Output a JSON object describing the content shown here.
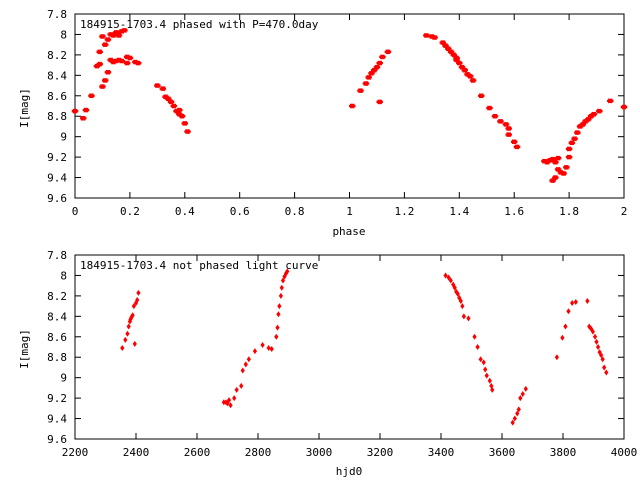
{
  "chart_data": [
    {
      "type": "scatter",
      "title": "184915-1703.4 phased with P=470.0day",
      "xlabel": "phase",
      "ylabel": "I[mag]",
      "xlim": [
        0,
        2
      ],
      "ylim": [
        9.6,
        7.8
      ],
      "y_inverted": true,
      "xticks": [
        "0",
        "0.2",
        "0.4",
        "0.6",
        "0.8",
        "1",
        "1.2",
        "1.4",
        "1.6",
        "1.8",
        "2"
      ],
      "yticks": [
        "7.8",
        "8",
        "8.2",
        "8.4",
        "8.6",
        "8.8",
        "9",
        "9.2",
        "9.4",
        "9.6"
      ],
      "grid": false,
      "legend": "none",
      "marker": "filled-square",
      "color": "#ff0000",
      "x": [
        0.0,
        0.03,
        0.04,
        0.06,
        0.08,
        0.09,
        0.09,
        0.1,
        0.1,
        0.11,
        0.11,
        0.12,
        0.12,
        0.13,
        0.13,
        0.14,
        0.14,
        0.15,
        0.15,
        0.16,
        0.16,
        0.17,
        0.17,
        0.18,
        0.19,
        0.19,
        0.2,
        0.22,
        0.23,
        0.3,
        0.32,
        0.33,
        0.34,
        0.35,
        0.36,
        0.37,
        0.38,
        0.38,
        0.39,
        0.4,
        0.41,
        1.01,
        1.04,
        1.06,
        1.07,
        1.08,
        1.09,
        1.1,
        1.11,
        1.11,
        1.12,
        1.14,
        1.28,
        1.3,
        1.31,
        1.34,
        1.35,
        1.36,
        1.37,
        1.38,
        1.39,
        1.39,
        1.4,
        1.41,
        1.42,
        1.43,
        1.44,
        1.45,
        1.48,
        1.51,
        1.53,
        1.55,
        1.57,
        1.58,
        1.58,
        1.6,
        1.61,
        1.71,
        1.72,
        1.73,
        1.74,
        1.74,
        1.75,
        1.75,
        1.76,
        1.76,
        1.77,
        1.78,
        1.79,
        1.8,
        1.8,
        1.81,
        1.82,
        1.83,
        1.84,
        1.85,
        1.86,
        1.87,
        1.88,
        1.89,
        1.91,
        1.95,
        2.0
      ],
      "y": [
        8.75,
        8.82,
        8.74,
        8.6,
        8.31,
        8.29,
        8.17,
        8.51,
        8.02,
        8.1,
        8.45,
        8.05,
        8.37,
        8.0,
        8.25,
        8.01,
        8.27,
        7.98,
        8.26,
        8.01,
        8.25,
        7.97,
        8.26,
        7.96,
        8.28,
        8.22,
        8.23,
        8.27,
        8.28,
        8.5,
        8.53,
        8.61,
        8.63,
        8.66,
        8.7,
        8.75,
        8.74,
        8.78,
        8.8,
        8.87,
        8.95,
        8.7,
        8.55,
        8.48,
        8.42,
        8.38,
        8.35,
        8.32,
        8.28,
        8.66,
        8.22,
        8.17,
        8.01,
        8.02,
        8.03,
        8.08,
        8.11,
        8.14,
        8.17,
        8.2,
        8.23,
        8.25,
        8.28,
        8.32,
        8.35,
        8.39,
        8.41,
        8.45,
        8.6,
        8.72,
        8.8,
        8.85,
        8.88,
        8.92,
        8.98,
        9.05,
        9.1,
        9.24,
        9.25,
        9.23,
        9.22,
        9.43,
        9.4,
        9.25,
        9.21,
        9.32,
        9.35,
        9.36,
        9.3,
        9.2,
        9.12,
        9.06,
        9.02,
        8.96,
        8.9,
        8.88,
        8.85,
        8.83,
        8.8,
        8.78,
        8.75,
        8.65,
        8.71
      ],
      "marker_size": 4.5
    },
    {
      "type": "scatter",
      "title": "184915-1703.4 not phased light curve",
      "xlabel": "hjd0",
      "ylabel": "I[mag]",
      "xlim": [
        2200,
        4000
      ],
      "ylim": [
        9.6,
        7.8
      ],
      "y_inverted": true,
      "xticks": [
        "2200",
        "2400",
        "2600",
        "2800",
        "3000",
        "3200",
        "3400",
        "3600",
        "3800",
        "4000"
      ],
      "yticks": [
        "7.8",
        "8",
        "8.2",
        "8.4",
        "8.6",
        "8.8",
        "9",
        "9.2",
        "9.4",
        "9.6"
      ],
      "grid": false,
      "legend": "none",
      "marker": "filled-diamond",
      "color": "#ff0000",
      "x": [
        2355,
        2365,
        2372,
        2376,
        2380,
        2382,
        2385,
        2389,
        2393,
        2396,
        2400,
        2404,
        2408,
        2688,
        2695,
        2700,
        2705,
        2710,
        2722,
        2730,
        2745,
        2750,
        2760,
        2770,
        2790,
        2815,
        2835,
        2845,
        2860,
        2864,
        2867,
        2870,
        2875,
        2878,
        2882,
        2887,
        2892,
        2896,
        3415,
        3425,
        3432,
        3440,
        3445,
        3450,
        3455,
        3460,
        3465,
        3470,
        3475,
        3490,
        3510,
        3520,
        3530,
        3540,
        3545,
        3550,
        3560,
        3565,
        3568,
        3635,
        3642,
        3650,
        3655,
        3660,
        3668,
        3678,
        3780,
        3798,
        3808,
        3818,
        3830,
        3842,
        3880,
        3886,
        3892,
        3898,
        3905,
        3910,
        3915,
        3920,
        3925,
        3930,
        3935,
        3942
      ],
      "y": [
        8.71,
        8.63,
        8.57,
        8.5,
        8.45,
        8.43,
        8.41,
        8.39,
        8.3,
        8.67,
        8.27,
        8.24,
        8.17,
        9.24,
        9.24,
        9.25,
        9.22,
        9.27,
        9.2,
        9.12,
        9.08,
        8.93,
        8.87,
        8.82,
        8.74,
        8.68,
        8.71,
        8.72,
        8.6,
        8.51,
        8.38,
        8.3,
        8.2,
        8.12,
        8.05,
        8.01,
        7.98,
        7.96,
        8.0,
        8.02,
        8.05,
        8.09,
        8.12,
        8.16,
        8.18,
        8.22,
        8.25,
        8.3,
        8.4,
        8.42,
        8.6,
        8.7,
        8.82,
        8.85,
        8.92,
        8.98,
        9.03,
        9.08,
        9.12,
        9.44,
        9.4,
        9.35,
        9.31,
        9.2,
        9.16,
        9.11,
        8.8,
        8.61,
        8.5,
        8.35,
        8.27,
        8.26,
        8.25,
        8.5,
        8.52,
        8.55,
        8.6,
        8.65,
        8.7,
        8.75,
        8.78,
        8.82,
        8.9,
        8.95
      ],
      "marker_size": 4
    }
  ]
}
